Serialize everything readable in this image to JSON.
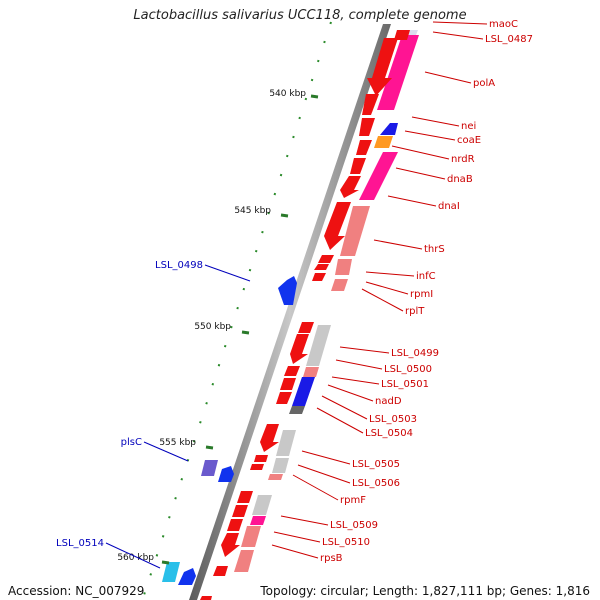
{
  "title": "Lactobacillus salivarius UCC118, complete genome",
  "footer": {
    "accession": "Accession: NC_007929",
    "topology": "Topology: circular; Length: 1,827,111 bp; Genes: 1,816"
  },
  "colors": {
    "forward_strand_label": "#cc0000",
    "reverse_strand_label": "#0000bb",
    "tick": "#2a7a2a"
  },
  "scale_ticks": [
    "540 kbp",
    "545 kbp",
    "550 kbp",
    "555 kbp",
    "560 kbp"
  ],
  "forward_genes": [
    "maoC",
    "LSL_0487",
    "polA",
    "nei",
    "coaE",
    "nrdR",
    "dnaB",
    "dnaI",
    "thrS",
    "infC",
    "rpmI",
    "rplT",
    "LSL_0499",
    "LSL_0500",
    "LSL_0501",
    "nadD",
    "LSL_0503",
    "LSL_0504",
    "LSL_0505",
    "LSL_0506",
    "rpmF",
    "LSL_0509",
    "LSL_0510",
    "rpsB"
  ],
  "reverse_genes": [
    "LSL_0498",
    "plsC",
    "LSL_0514"
  ]
}
